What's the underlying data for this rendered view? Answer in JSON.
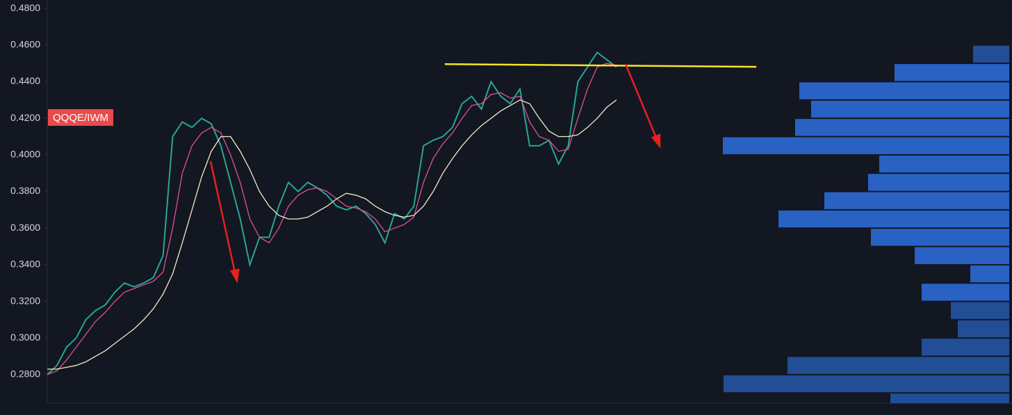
{
  "chart_data": {
    "type": "line",
    "label": "QQQE/IWM",
    "x": [
      0,
      1,
      2,
      3,
      4,
      5,
      6,
      7,
      8,
      9,
      10,
      11,
      12,
      13,
      14,
      15,
      16,
      17,
      18,
      19,
      20,
      21,
      22,
      23,
      24,
      25,
      26,
      27,
      28,
      29,
      30,
      31,
      32,
      33,
      34,
      35,
      36,
      37,
      38,
      39,
      40,
      41,
      42,
      43,
      44,
      45,
      46,
      47,
      48,
      49,
      50,
      51,
      52,
      53,
      54,
      55,
      56,
      57,
      58,
      59
    ],
    "xlim": [
      0,
      100
    ],
    "ylim": [
      0.2644,
      0.4846
    ],
    "yticks": [
      {
        "value": 0.28,
        "label": "0.2800"
      },
      {
        "value": 0.3,
        "label": "0.3000"
      },
      {
        "value": 0.32,
        "label": "0.3200"
      },
      {
        "value": 0.34,
        "label": "0.3400"
      },
      {
        "value": 0.36,
        "label": "0.3600"
      },
      {
        "value": 0.38,
        "label": "0.3800"
      },
      {
        "value": 0.4,
        "label": "0.4000"
      },
      {
        "value": 0.42,
        "label": "0.4200"
      },
      {
        "value": 0.44,
        "label": "0.4400"
      },
      {
        "value": 0.46,
        "label": "0.4600"
      },
      {
        "value": 0.48,
        "label": "0.4800"
      }
    ],
    "series": [
      {
        "color": "#26a69a",
        "values": [
          0.28,
          0.285,
          0.295,
          0.3,
          0.31,
          0.315,
          0.318,
          0.325,
          0.33,
          0.328,
          0.33,
          0.333,
          0.345,
          0.41,
          0.418,
          0.415,
          0.42,
          0.417,
          0.405,
          0.385,
          0.365,
          0.34,
          0.355,
          0.355,
          0.372,
          0.385,
          0.38,
          0.385,
          0.382,
          0.378,
          0.372,
          0.37,
          0.372,
          0.368,
          0.362,
          0.352,
          0.368,
          0.365,
          0.372,
          0.405,
          0.408,
          0.41,
          0.415,
          0.428,
          0.432,
          0.425,
          0.44,
          0.432,
          0.428,
          0.436,
          0.405,
          0.405,
          0.408,
          0.395,
          0.405,
          0.44,
          0.448,
          0.456,
          0.452,
          0.448
        ]
      },
      {
        "color": "#e0528f",
        "values": [
          0.28,
          0.282,
          0.288,
          0.295,
          0.302,
          0.309,
          0.314,
          0.32,
          0.325,
          0.327,
          0.329,
          0.331,
          0.336,
          0.36,
          0.39,
          0.405,
          0.412,
          0.415,
          0.412,
          0.4,
          0.385,
          0.365,
          0.355,
          0.352,
          0.36,
          0.372,
          0.378,
          0.381,
          0.382,
          0.38,
          0.376,
          0.372,
          0.371,
          0.369,
          0.365,
          0.358,
          0.36,
          0.362,
          0.366,
          0.385,
          0.398,
          0.406,
          0.412,
          0.42,
          0.427,
          0.428,
          0.433,
          0.434,
          0.431,
          0.432,
          0.418,
          0.41,
          0.408,
          0.402,
          0.403,
          0.42,
          0.436,
          0.448,
          0.45,
          0.449
        ]
      },
      {
        "color": "#f3edc4",
        "values": [
          0.283,
          0.283,
          0.284,
          0.285,
          0.287,
          0.29,
          0.293,
          0.297,
          0.301,
          0.305,
          0.31,
          0.316,
          0.324,
          0.335,
          0.352,
          0.37,
          0.388,
          0.402,
          0.41,
          0.41,
          0.402,
          0.392,
          0.38,
          0.372,
          0.367,
          0.365,
          0.365,
          0.366,
          0.369,
          0.372,
          0.376,
          0.379,
          0.378,
          0.376,
          0.372,
          0.369,
          0.367,
          0.366,
          0.367,
          0.372,
          0.38,
          0.39,
          0.398,
          0.405,
          0.411,
          0.416,
          0.42,
          0.424,
          0.427,
          0.43,
          0.428,
          0.42,
          0.413,
          0.41,
          0.41,
          0.411,
          0.415,
          0.42,
          0.426,
          0.43
        ]
      }
    ],
    "resistance": {
      "x": [
        41.2,
        73.5
      ],
      "values": [
        0.4496,
        0.4481
      ],
      "color": "#f5e52a"
    },
    "volume_profile": {
      "bins": [
        0.26,
        0.27,
        0.28,
        0.29,
        0.3,
        0.31,
        0.32,
        0.33,
        0.34,
        0.35,
        0.36,
        0.37,
        0.38,
        0.39,
        0.4,
        0.41,
        0.42,
        0.43,
        0.44,
        0.45,
        0.46
      ],
      "values": [
        171,
        411,
        319,
        126,
        74,
        84,
        126,
        56,
        136,
        199,
        332,
        266,
        203,
        187,
        412,
        308,
        285,
        302,
        165,
        52
      ],
      "colors": [
        "#224e96",
        "#224e96",
        "#224e96",
        "#224e96",
        "#224e96",
        "#224e96",
        "#2a62c4",
        "#2a62c4",
        "#2a62c4",
        "#2a62c4",
        "#2a62c4",
        "#2a62c4",
        "#2a62c4",
        "#2a62c4",
        "#2a62c4",
        "#2a62c4",
        "#2a62c4",
        "#2a62c4",
        "#2a62c4",
        "#224e96"
      ]
    }
  }
}
